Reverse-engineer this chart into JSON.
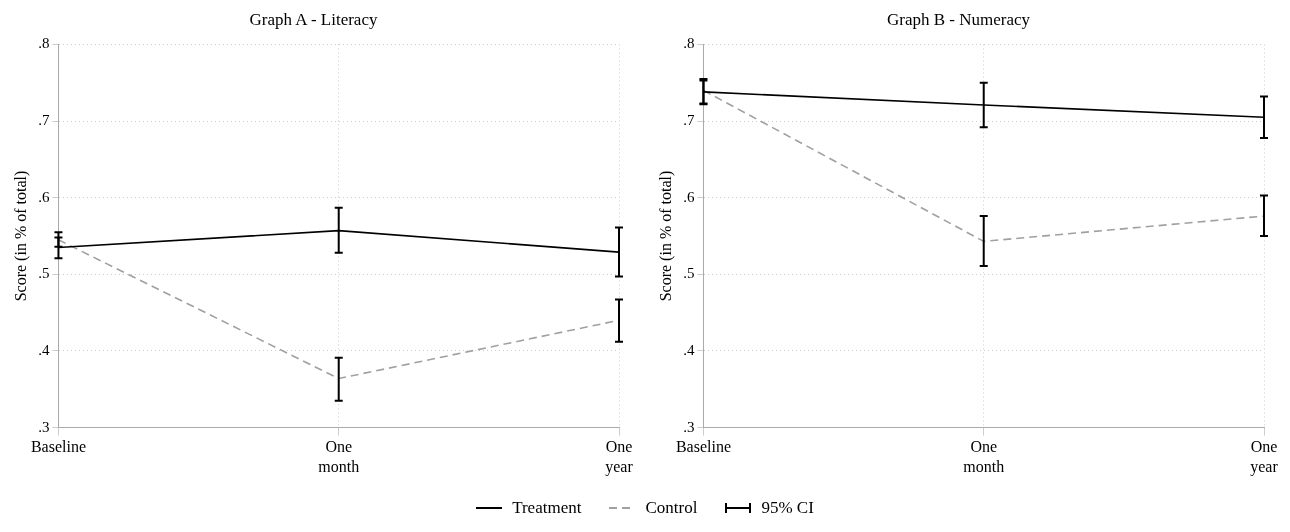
{
  "chart_data": [
    {
      "type": "line",
      "title": "Graph A - Literacy",
      "ylabel": "Score (in % of total)",
      "categories": [
        "Baseline",
        "One month",
        "One year"
      ],
      "ylim": [
        0.3,
        0.8
      ],
      "yticks": [
        {
          "value": 0.3,
          "label": ".3"
        },
        {
          "value": 0.4,
          "label": ".4"
        },
        {
          "value": 0.5,
          "label": ".5"
        },
        {
          "value": 0.6,
          "label": ".6"
        },
        {
          "value": 0.7,
          "label": ".7"
        },
        {
          "value": 0.8,
          "label": ".8"
        }
      ],
      "grid": true,
      "legend": "bottom",
      "annotations": [
        "95% CI"
      ],
      "series": [
        {
          "name": "Treatment",
          "color": "#000000",
          "line_style": "solid",
          "values": [
            0.535,
            0.557,
            0.529
          ],
          "errors": [
            [
              0.521,
              0.548
            ],
            [
              0.528,
              0.587
            ],
            [
              0.497,
              0.561
            ]
          ]
        },
        {
          "name": "Control",
          "color": "#a0a0a0",
          "line_style": "dashed",
          "values": [
            0.545,
            0.364,
            0.44
          ],
          "errors": [
            [
              0.536,
              0.555
            ],
            [
              0.335,
              0.391
            ],
            [
              0.412,
              0.467
            ]
          ]
        }
      ]
    },
    {
      "type": "line",
      "title": "Graph B - Numeracy",
      "ylabel": "Score (in % of total)",
      "categories": [
        "Baseline",
        "One month",
        "One year"
      ],
      "ylim": [
        0.3,
        0.8
      ],
      "yticks": [
        {
          "value": 0.3,
          "label": ".3"
        },
        {
          "value": 0.4,
          "label": ".4"
        },
        {
          "value": 0.5,
          "label": ".5"
        },
        {
          "value": 0.6,
          "label": ".6"
        },
        {
          "value": 0.7,
          "label": ".7"
        },
        {
          "value": 0.8,
          "label": ".8"
        }
      ],
      "grid": true,
      "series": [
        {
          "color": "#000000",
          "line_style": "solid",
          "values": [
            0.738,
            0.721,
            0.705
          ],
          "errors": [
            [
              0.723,
              0.755
            ],
            [
              0.692,
              0.75
            ],
            [
              0.678,
              0.732
            ]
          ]
        },
        {
          "color": "#a0a0a0",
          "line_style": "dashed",
          "values": [
            0.74,
            0.543,
            0.576
          ],
          "errors": [
            [
              0.722,
              0.753
            ],
            [
              0.511,
              0.576
            ],
            [
              0.55,
              0.603
            ]
          ]
        }
      ]
    }
  ]
}
